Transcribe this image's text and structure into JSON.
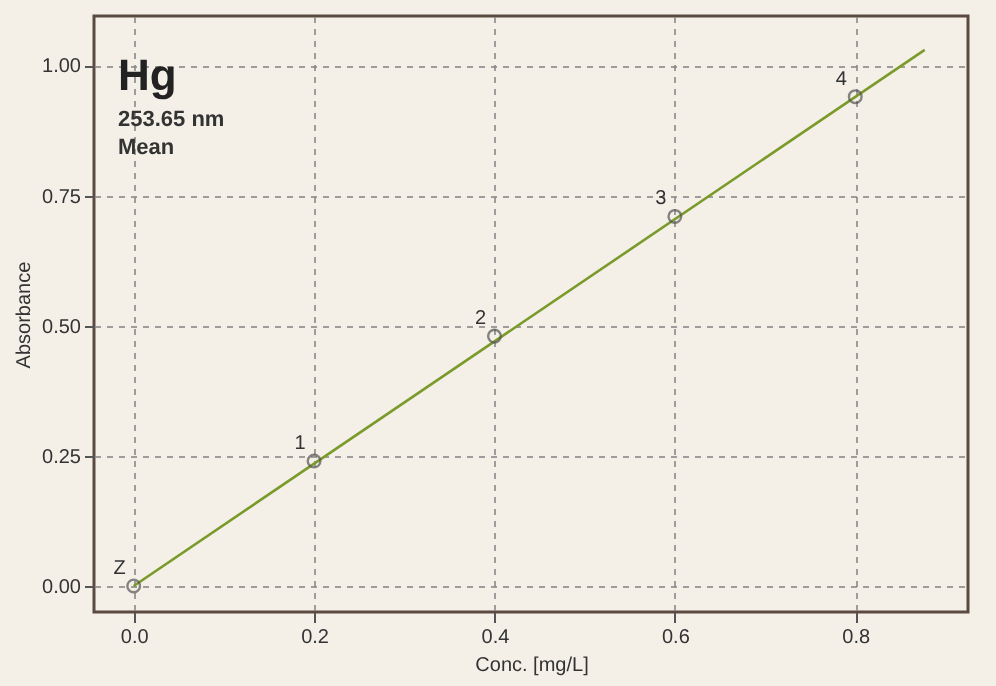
{
  "chart_data": {
    "type": "scatter",
    "title": "Hg",
    "subtitle": "253.65 nm",
    "xlabel": "Conc. [mg/L]",
    "ylabel": "Absorbance",
    "x": [
      0,
      0.2,
      0.4,
      0.6,
      0.8
    ],
    "series": [
      {
        "color": "#555555",
        "marker": "circle",
        "values": [
          0,
          0.24,
          0.48,
          0.71,
          0.94
        ]
      },
      {
        "type": "line",
        "color": "#7a9a2a",
        "marker": "none",
        "x": [
          0,
          0.877
        ],
        "values": [
          0,
          1.03
        ]
      }
    ],
    "annotations": [
      "Mean",
      {
        "text": "Z",
        "x": 0,
        "y": 0
      },
      {
        "text": "1",
        "x": 0.2,
        "y": 0.24
      },
      {
        "text": "2",
        "x": 0.4,
        "y": 0.48
      },
      {
        "text": "3",
        "x": 0.6,
        "y": 0.71
      },
      {
        "text": "4",
        "x": 0.8,
        "y": 0.94
      }
    ],
    "xlim": [
      -0.044,
      0.925
    ],
    "ylim": [
      -0.05,
      1.095
    ],
    "xticks": [
      {
        "value": 0,
        "label": "0.0"
      },
      0.2,
      0.4,
      0.6,
      0.8
    ],
    "yticks": [
      {
        "value": 0,
        "label": "0.00"
      },
      0.25,
      {
        "value": 0.5,
        "label": "0.50"
      },
      0.75,
      {
        "value": 1,
        "label": "1.00"
      }
    ],
    "grid": true
  }
}
